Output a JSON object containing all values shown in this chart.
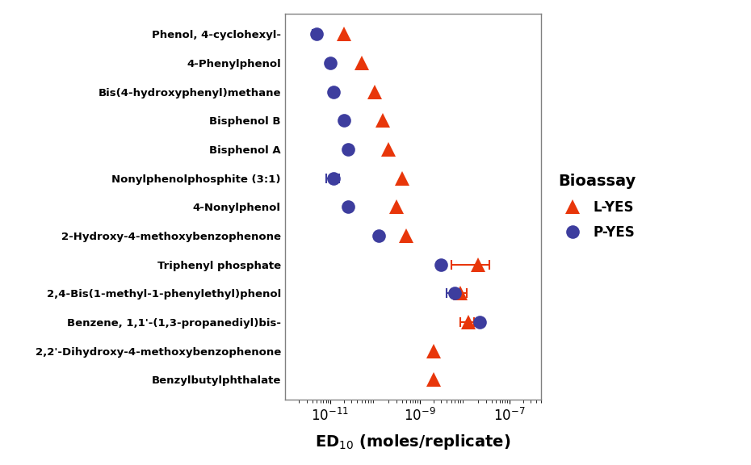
{
  "compounds": [
    "Phenol, 4-cyclohexyl-",
    "4-Phenylphenol",
    "Bis(4-hydroxyphenyl)methane",
    "Bisphenol B",
    "Bisphenol A",
    "Nonylphenolphosphite (3:1)",
    "4-Nonylphenol",
    "2-Hydroxy-4-methoxybenzophenone",
    "Triphenyl phosphate",
    "2,4-Bis(1-methyl-1-phenylethyl)phenol",
    "Benzene, 1,1'-(1,3-propanediyl)bis-",
    "2,2'-Dihydroxy-4-methoxybenzophenone",
    "Benzylbutylphthalate"
  ],
  "lyes_values": [
    2e-11,
    5e-11,
    1e-10,
    1.5e-10,
    2e-10,
    4e-10,
    3e-10,
    5e-10,
    2e-08,
    8e-09,
    1.2e-08,
    2e-09,
    2e-09
  ],
  "lyes_xerr_low": [
    0,
    0,
    0,
    0,
    0,
    0,
    0,
    0,
    1.5e-08,
    3e-09,
    4e-09,
    0,
    0
  ],
  "lyes_xerr_high": [
    0,
    0,
    0,
    0,
    0,
    0,
    0,
    0,
    1.5e-08,
    3e-09,
    4e-09,
    0,
    0
  ],
  "pyes_values": [
    5e-12,
    1e-11,
    1.2e-11,
    2e-11,
    2.5e-11,
    1.2e-11,
    2.5e-11,
    1.2e-10,
    3e-09,
    6e-09,
    2.2e-08,
    null,
    null
  ],
  "pyes_xerr_low": [
    1e-12,
    0,
    1.5e-12,
    0,
    0,
    4e-12,
    0,
    0,
    0,
    2e-09,
    3e-09,
    0,
    0
  ],
  "pyes_xerr_high": [
    1e-12,
    0,
    1.5e-12,
    0,
    0,
    4e-12,
    0,
    0,
    0,
    2e-09,
    3e-09,
    0,
    0
  ],
  "lyes_color": "#e8360a",
  "pyes_color": "#3d3d9e",
  "xlabel": "ED$_{10}$ (moles/replicate)",
  "legend_title": "Bioassay",
  "legend_lyes": "L-YES",
  "legend_pyes": "P-YES",
  "xlim_low": 1e-12,
  "xlim_high": 5e-07,
  "xticks": [
    1e-11,
    1e-09,
    1e-07
  ]
}
